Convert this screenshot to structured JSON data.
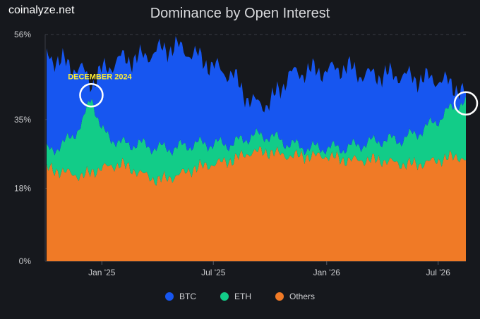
{
  "brand": "coinalyze.net",
  "chart_data": {
    "type": "area",
    "stacked": true,
    "title": "Dominance by Open Interest",
    "y_ticks": [
      "0%",
      "18%",
      "35%",
      "56%"
    ],
    "y_tick_values": [
      0,
      18,
      35,
      56
    ],
    "ylim": [
      0,
      56
    ],
    "x_ticks": [
      "Jan '25",
      "Jul '25",
      "Jan '26",
      "Jul '26"
    ],
    "x_tick_dates": [
      "2025-01-01",
      "2025-07-01",
      "2026-01-01",
      "2026-07-01"
    ],
    "x_range": [
      "2024-10-01",
      "2026-08-15"
    ],
    "dates": [
      "2024-10-01",
      "2024-11-01",
      "2024-12-01",
      "2024-12-15",
      "2025-01-01",
      "2025-02-01",
      "2025-03-01",
      "2025-04-01",
      "2025-05-01",
      "2025-06-01",
      "2025-07-01",
      "2025-08-01",
      "2025-09-01",
      "2025-10-01",
      "2025-11-01",
      "2025-12-01",
      "2026-01-01",
      "2026-02-01",
      "2026-03-01",
      "2026-04-01",
      "2026-05-01",
      "2026-06-01",
      "2026-07-01",
      "2026-08-01",
      "2026-08-15"
    ],
    "series": [
      {
        "name": "Others",
        "color": "#f07a26",
        "values": [
          23,
          22,
          21,
          22,
          23,
          24,
          22,
          20,
          21,
          23,
          24,
          25,
          27,
          27,
          26,
          26,
          26,
          25,
          25,
          25,
          24,
          24,
          25,
          26,
          25
        ]
      },
      {
        "name": "ETH",
        "color": "#12cc88",
        "values": [
          4,
          7,
          13,
          19,
          9,
          5,
          7,
          8,
          7,
          6,
          5,
          4,
          4,
          4,
          3,
          2,
          2,
          3,
          4,
          5,
          6,
          8,
          10,
          13,
          14
        ]
      },
      {
        "name": "BTC",
        "color": "#1756f0",
        "values": [
          24,
          20,
          13,
          3,
          15,
          21,
          21,
          24,
          25,
          22,
          19,
          17,
          8,
          8,
          17,
          19,
          19,
          20,
          17,
          16,
          16,
          13,
          10,
          4,
          2
        ]
      }
    ],
    "annotations": [
      {
        "text": "DECEMBER 2024",
        "date": "2024-12-15",
        "y": 41
      },
      {
        "text": "",
        "date": "2026-08-15",
        "y": 39
      }
    ],
    "grid": "horizontal dashed",
    "legend_position": "bottom"
  }
}
